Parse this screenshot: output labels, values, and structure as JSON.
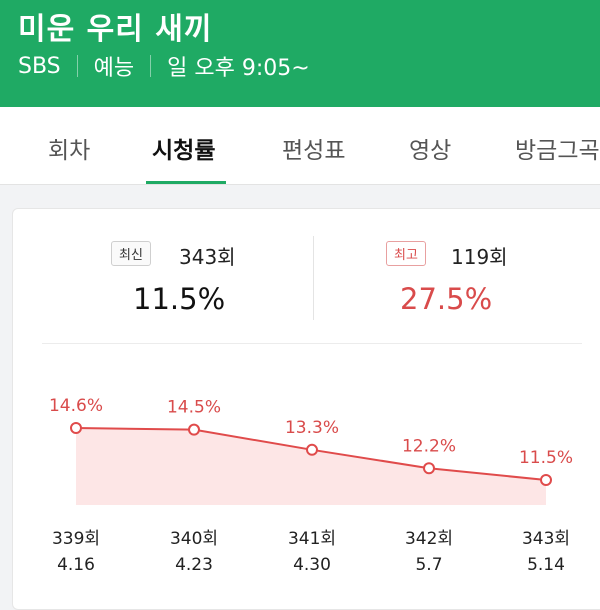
{
  "header": {
    "title": "미운 우리 새끼",
    "channel": "SBS",
    "genre": "예능",
    "schedule": "일 오후 9:05~"
  },
  "tabs": [
    {
      "label": "회차"
    },
    {
      "label": "시청률"
    },
    {
      "label": "편성표"
    },
    {
      "label": "영상"
    },
    {
      "label": "방금그곡"
    }
  ],
  "summary": {
    "latest_badge": "최신",
    "latest_episode": "343회",
    "latest_value": "11.5%",
    "best_badge": "최고",
    "best_episode": "119회",
    "best_value": "27.5%"
  },
  "colors": {
    "brand": "#1faa64",
    "accent_red": "#d94b4b",
    "line": "#e04b4b",
    "area": "#fde6e6"
  },
  "chart_data": {
    "type": "line",
    "x": [
      "339회",
      "340회",
      "341회",
      "342회",
      "343회"
    ],
    "dates": [
      "4.16",
      "4.23",
      "4.30",
      "5.7",
      "5.14"
    ],
    "values": [
      14.6,
      14.5,
      13.3,
      12.2,
      11.5
    ],
    "labels": [
      "14.6%",
      "14.5%",
      "13.3%",
      "12.2%",
      "11.5%"
    ]
  }
}
